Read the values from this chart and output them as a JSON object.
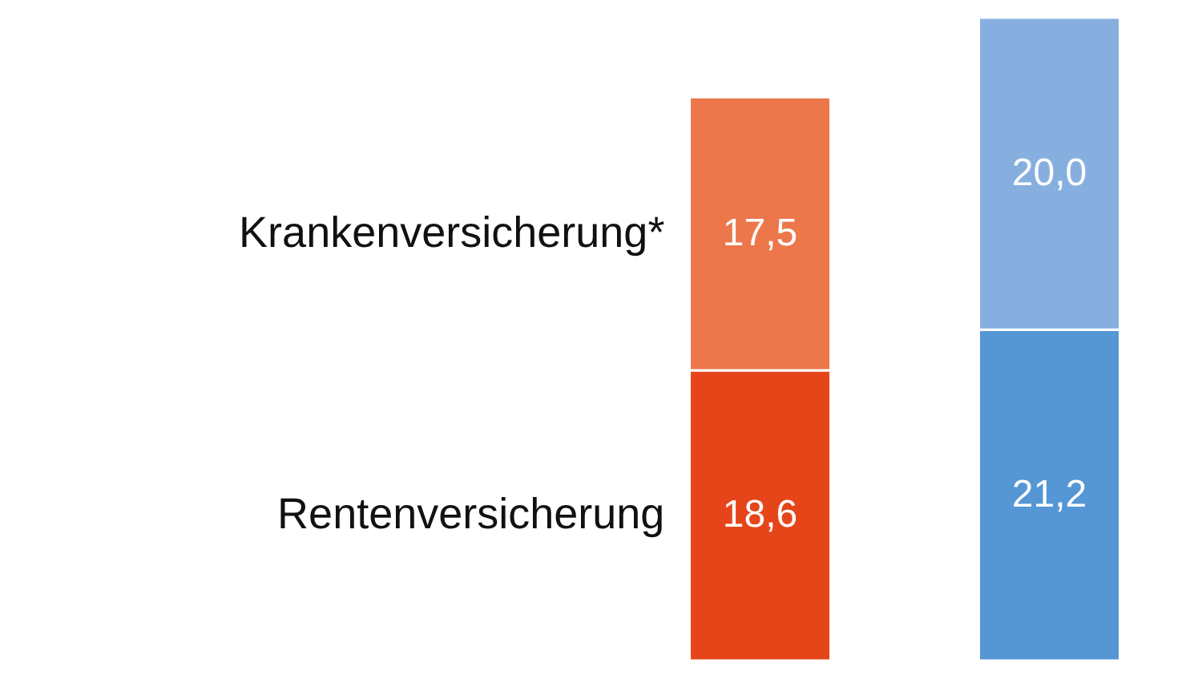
{
  "chart_data": {
    "type": "bar",
    "stacked": true,
    "categories": [
      null,
      null
    ],
    "series": [
      {
        "name": "Rentenversicherung",
        "colors": [
          "#e64519",
          "#5596d4"
        ],
        "values": [
          18.6,
          21.2
        ],
        "value_labels": [
          "18,6",
          "21,2"
        ]
      },
      {
        "name": "Krankenversicherung*",
        "colors": [
          "#ec774b",
          "#86afe0"
        ],
        "values": [
          17.5,
          20.0
        ],
        "value_labels": [
          "17,5",
          "20,0"
        ]
      }
    ]
  }
}
